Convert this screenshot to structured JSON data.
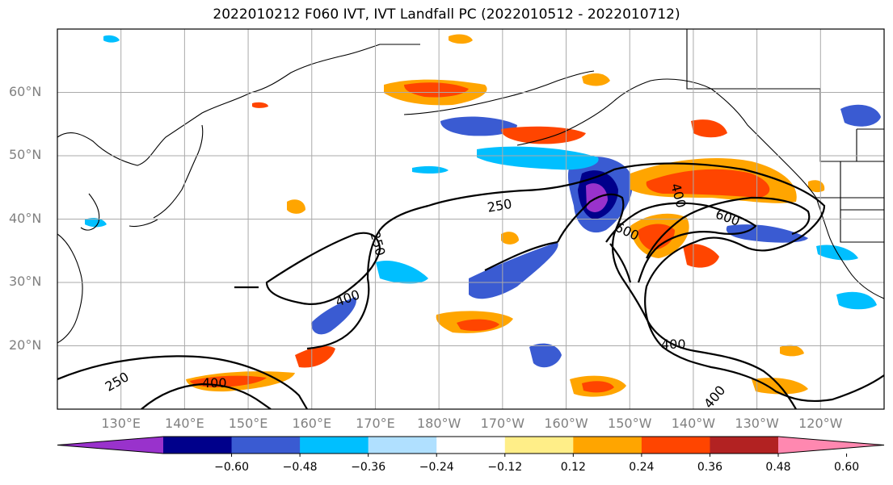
{
  "title": "2022010212 F060 IVT, IVT Landfall PC (2022010512 - 2022010712)",
  "map": {
    "projection": "PlateCarree",
    "lon_range": [
      120,
      250
    ],
    "lat_range": [
      10,
      70
    ],
    "lat_labels": [
      "20°N",
      "30°N",
      "40°N",
      "50°N",
      "60°N"
    ],
    "lon_labels": [
      "130°E",
      "140°E",
      "150°E",
      "160°E",
      "170°E",
      "180°W",
      "170°W",
      "160°W",
      "150°W",
      "140°W",
      "130°W",
      "120°W"
    ],
    "gridlines": true
  },
  "contour_labels": [
    "250",
    "250",
    "250",
    "400",
    "400",
    "400",
    "400",
    "400",
    "600",
    "600"
  ],
  "colorbar": {
    "orientation": "horizontal",
    "extend": "both",
    "colors": [
      "#9932cc",
      "#00008b",
      "#3a5bd2",
      "#00bfff",
      "#b0e0ff",
      "#ffffff",
      "#ffee88",
      "#ffa500",
      "#ff4500",
      "#b22222",
      "#ff88b0"
    ],
    "tick_labels": [
      "−0.60",
      "−0.48",
      "−0.36",
      "−0.24",
      "−0.12",
      "0.12",
      "0.24",
      "0.36",
      "0.48",
      "0.60"
    ]
  }
}
